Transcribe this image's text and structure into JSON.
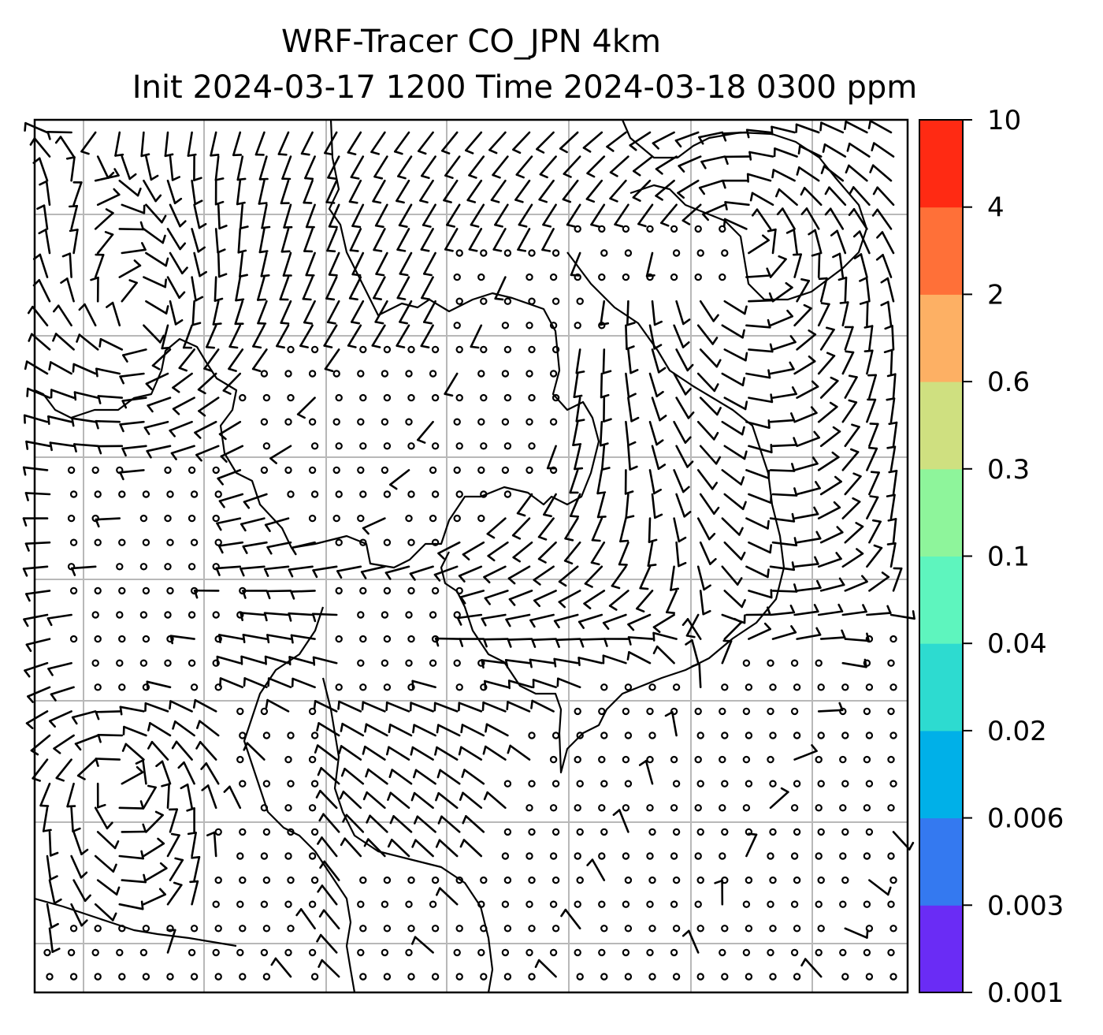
{
  "chart_data": {
    "type": "map",
    "title": {
      "line1": "WRF-Tracer CO_JPN 4km",
      "line2": "Init 2024-03-17 1200 Time 2024-03-18 0300 ppm"
    },
    "grid": true,
    "colorbar": {
      "orientation": "vertical",
      "location": "right",
      "levels": [
        "0.001",
        "0.003",
        "0.006",
        "0.02",
        "0.04",
        "0.1",
        "0.3",
        "0.6",
        "2",
        "4",
        "10"
      ],
      "colors": [
        "#6a2cf5",
        "#3479f0",
        "#00b0e8",
        "#2ddbd0",
        "#5ef5be",
        "#8ef59b",
        "#cfe080",
        "#fdb064",
        "#ff7038",
        "#ff2a13"
      ]
    },
    "contour_fill": "none",
    "overlay": "wind barbs",
    "coastline_color": "#000000"
  }
}
